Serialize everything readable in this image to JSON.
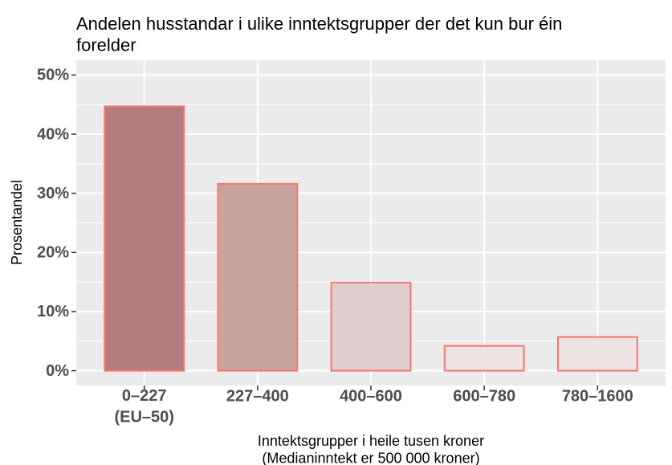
{
  "chart_data": {
    "type": "bar",
    "title": "Andelen husstandar i ulike inntektsgrupper der det kun bur éin\nforelder",
    "x_label": "Inntektsgrupper i heile tusen kroner\n(Medianinntekt er 500 000 kroner)",
    "y_label": "Prosentandel",
    "categories": [
      "0–227\n(EU–50)",
      "227–400",
      "400–600",
      "600–780",
      "780–1600"
    ],
    "values": [
      44.7,
      31.6,
      14.9,
      4.2,
      5.7
    ],
    "colors": [
      "#b07c7c",
      "#c9a39f",
      "#e0cdcd",
      "#eee4e4",
      "#ede3e3"
    ],
    "stroke": "#f8766d",
    "ylim": [
      -2.5,
      52.5
    ],
    "yticks": [
      {
        "value": 0,
        "label": "0%"
      },
      {
        "value": 10,
        "label": "10%"
      },
      {
        "value": 20,
        "label": "20%"
      },
      {
        "value": 30,
        "label": "30%"
      },
      {
        "value": 40,
        "label": "40%"
      },
      {
        "value": 50,
        "label": "50%"
      }
    ],
    "grid": true
  }
}
